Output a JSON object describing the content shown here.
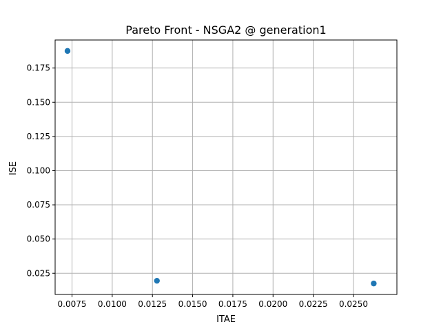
{
  "chart_data": {
    "type": "scatter",
    "title": "Pareto Front - NSGA2 @ generation1",
    "xlabel": "ITAE",
    "ylabel": "ISE",
    "xlim": [
      0.00645,
      0.0277
    ],
    "ylim": [
      0.0095,
      0.1955
    ],
    "xticks": [
      0.0075,
      0.01,
      0.0125,
      0.015,
      0.0175,
      0.02,
      0.0225,
      0.025
    ],
    "xtick_labels": [
      "0.0075",
      "0.0100",
      "0.0125",
      "0.0150",
      "0.0175",
      "0.0200",
      "0.0225",
      "0.0250"
    ],
    "yticks": [
      0.025,
      0.05,
      0.075,
      0.1,
      0.125,
      0.15,
      0.175
    ],
    "ytick_labels": [
      "0.025",
      "0.050",
      "0.075",
      "0.100",
      "0.125",
      "0.150",
      "0.175"
    ],
    "grid": true,
    "marker_color": "#1f77b4",
    "points": [
      {
        "x": 0.00722,
        "y": 0.1875
      },
      {
        "x": 0.01278,
        "y": 0.0195
      },
      {
        "x": 0.02626,
        "y": 0.0175
      }
    ]
  }
}
